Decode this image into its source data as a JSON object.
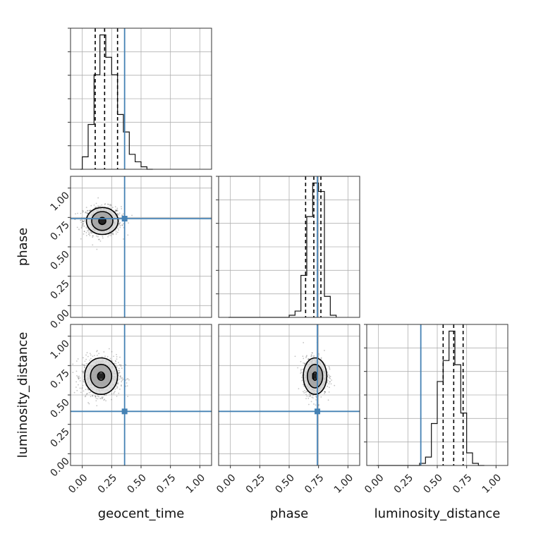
{
  "chart_data": {
    "type": "corner",
    "parameters": [
      "geocent_time",
      "phase",
      "luminosity_distance"
    ],
    "tick_labels": [
      "0.00",
      "0.25",
      "0.50",
      "0.75",
      "1.00"
    ],
    "tick_values": [
      0.0,
      0.25,
      0.5,
      0.75,
      1.0
    ],
    "axis_range": [
      -0.1,
      1.1
    ],
    "grid": true,
    "colors": {
      "truth": "#4682b4",
      "histogram": "#111111",
      "quantiles": "#000000",
      "samples": "#555555",
      "contour_fill": "#999999"
    },
    "truths": {
      "geocent_time": 0.36,
      "phase": 0.74,
      "luminosity_distance": 0.36
    },
    "marginals": [
      {
        "parameter": "geocent_time",
        "bin_edges": [
          0.0,
          0.05,
          0.1,
          0.15,
          0.2,
          0.25,
          0.3,
          0.35,
          0.4,
          0.45,
          0.5,
          0.55,
          0.6
        ],
        "counts": [
          5,
          18,
          38,
          54,
          45,
          38,
          22,
          15,
          6,
          3,
          1,
          0
        ],
        "quantiles": [
          0.11,
          0.19,
          0.3
        ]
      },
      {
        "parameter": "phase",
        "bin_edges": [
          0.5,
          0.55,
          0.6,
          0.65,
          0.7,
          0.75,
          0.8,
          0.85,
          0.9
        ],
        "counts": [
          1,
          3,
          20,
          48,
          64,
          60,
          10,
          1
        ],
        "quantiles": [
          0.64,
          0.71,
          0.77
        ]
      },
      {
        "parameter": "luminosity_distance",
        "bin_edges": [
          0.35,
          0.4,
          0.45,
          0.5,
          0.55,
          0.6,
          0.65,
          0.7,
          0.75,
          0.8,
          0.85,
          0.9
        ],
        "counts": [
          1,
          4,
          20,
          40,
          50,
          64,
          48,
          25,
          6,
          1,
          0
        ],
        "quantiles": [
          0.55,
          0.64,
          0.72
        ]
      }
    ],
    "joints": [
      {
        "x": "geocent_time",
        "y": "phase",
        "center": [
          0.17,
          0.72
        ],
        "spread": [
          0.08,
          0.06
        ],
        "contour_levels": [
          {
            "rx": 0.03,
            "ry": 0.03
          },
          {
            "rx": 0.09,
            "ry": 0.08
          },
          {
            "rx": 0.135,
            "ry": 0.115
          }
        ]
      },
      {
        "x": "geocent_time",
        "y": "luminosity_distance",
        "center": [
          0.16,
          0.66
        ],
        "spread": [
          0.08,
          0.08
        ],
        "contour_levels": [
          {
            "rx": 0.03,
            "ry": 0.035
          },
          {
            "rx": 0.09,
            "ry": 0.1
          },
          {
            "rx": 0.14,
            "ry": 0.155
          }
        ]
      },
      {
        "x": "phase",
        "y": "luminosity_distance",
        "center": [
          0.72,
          0.66
        ],
        "spread": [
          0.05,
          0.08
        ],
        "contour_levels": [
          {
            "rx": 0.02,
            "ry": 0.035
          },
          {
            "rx": 0.065,
            "ry": 0.1
          },
          {
            "rx": 0.1,
            "ry": 0.155
          }
        ]
      }
    ]
  }
}
